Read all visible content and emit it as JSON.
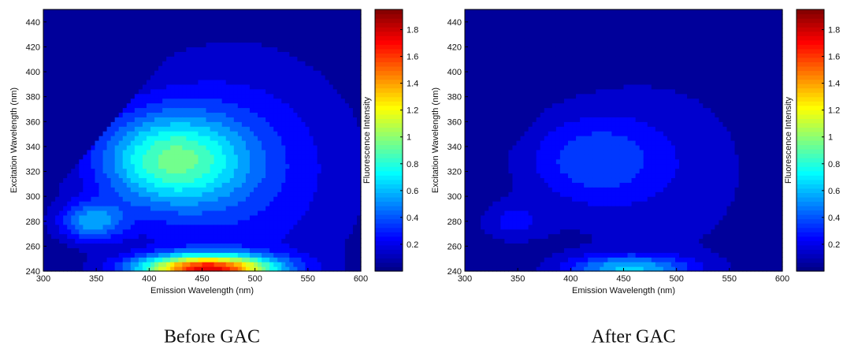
{
  "chart_data": [
    {
      "type": "heatmap",
      "caption": "Before GAC",
      "xlabel": "Emission Wavelength (nm)",
      "ylabel": "Excitation Wavelength (nm)",
      "colorbar_label": "Fluorescence Intensity",
      "xlim": [
        300,
        600
      ],
      "ylim": [
        240,
        450
      ],
      "x_ticks": [
        300,
        350,
        400,
        450,
        500,
        550,
        600
      ],
      "y_ticks": [
        240,
        260,
        280,
        300,
        320,
        340,
        360,
        380,
        400,
        420,
        440
      ],
      "clim": [
        0,
        1.95
      ],
      "colorbar_ticks": [
        0.2,
        0.4,
        0.6,
        0.8,
        1,
        1.2,
        1.4,
        1.6,
        1.8
      ],
      "colormap": "jet",
      "grid": false,
      "features": [
        {
          "em": 420,
          "ex": 330,
          "intensity": 0.72,
          "sem": 48,
          "sex": 26
        },
        {
          "em": 345,
          "ex": 280,
          "intensity": 0.48,
          "sem": 22,
          "sex": 11
        },
        {
          "em": 455,
          "ex": 242,
          "intensity": 1.6,
          "sem": 45,
          "sex": 8
        },
        {
          "em": 480,
          "ex": 320,
          "intensity": 0.3,
          "sem": 85,
          "sex": 70
        }
      ]
    },
    {
      "type": "heatmap",
      "caption": "After GAC",
      "xlabel": "Emission Wavelength (nm)",
      "ylabel": "Excitation Wavelength (nm)",
      "colorbar_label": "Fluorescence Intensity",
      "xlim": [
        300,
        600
      ],
      "ylim": [
        240,
        450
      ],
      "x_ticks": [
        300,
        350,
        400,
        450,
        500,
        550,
        600
      ],
      "y_ticks": [
        240,
        260,
        280,
        300,
        320,
        340,
        360,
        380,
        400,
        420,
        440
      ],
      "clim": [
        0,
        1.95
      ],
      "colorbar_ticks": [
        0.2,
        0.4,
        0.6,
        0.8,
        1,
        1.2,
        1.4,
        1.6,
        1.8
      ],
      "colormap": "jet",
      "grid": false,
      "features": [
        {
          "em": 420,
          "ex": 330,
          "intensity": 0.28,
          "sem": 45,
          "sex": 24
        },
        {
          "em": 345,
          "ex": 280,
          "intensity": 0.2,
          "sem": 22,
          "sex": 11
        },
        {
          "em": 455,
          "ex": 242,
          "intensity": 0.55,
          "sem": 42,
          "sex": 8
        },
        {
          "em": 480,
          "ex": 320,
          "intensity": 0.15,
          "sem": 85,
          "sex": 70
        }
      ]
    }
  ]
}
